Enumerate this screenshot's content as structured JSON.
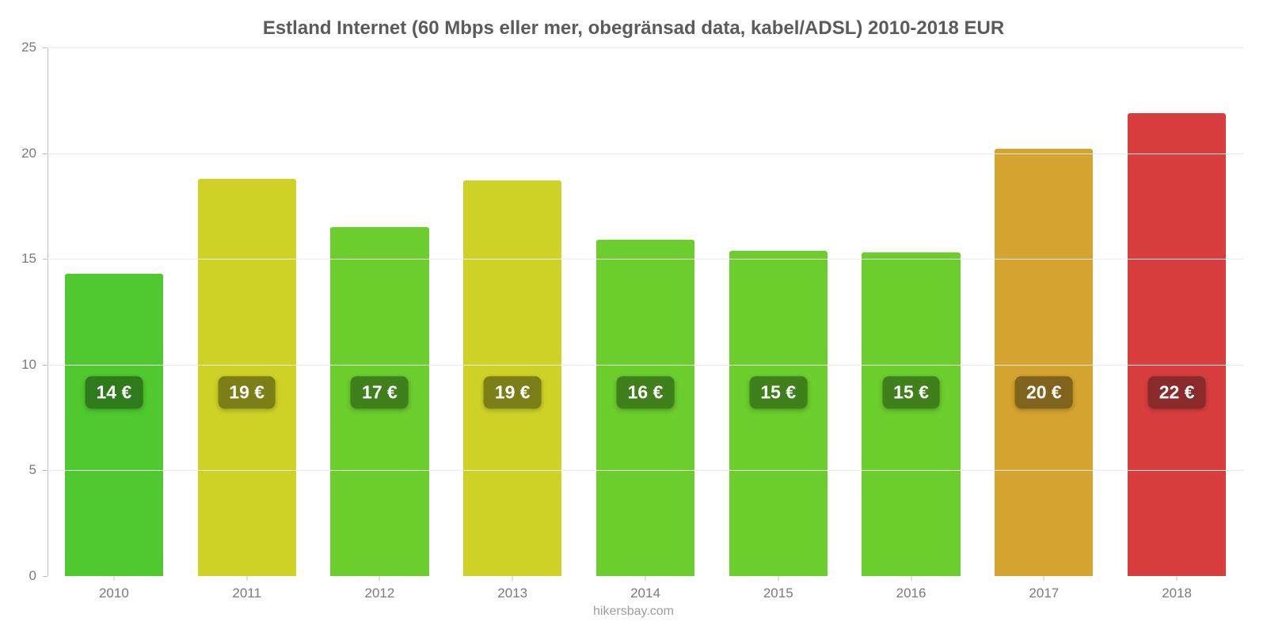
{
  "chart": {
    "type": "bar",
    "title": "Estland Internet (60 Mbps eller mer, obegränsad data, kabel/ADSL) 2010-2018 EUR",
    "title_fontsize": 24,
    "title_color": "#5b5b5b",
    "credit": "hikersbay.com",
    "credit_color": "#9e9e9e",
    "credit_fontsize": 16,
    "background_color": "#ffffff",
    "grid_color": "#ececec",
    "axis_color": "#c0c0c0",
    "tick_label_color": "#7a7a7a",
    "tick_label_fontsize": 17,
    "ylim": [
      0,
      25
    ],
    "ytick_step": 5,
    "bar_width": 0.74,
    "bar_label_fontsize": 23,
    "categories": [
      "2010",
      "2011",
      "2012",
      "2013",
      "2014",
      "2015",
      "2016",
      "2017",
      "2018"
    ],
    "values": [
      14.3,
      18.8,
      16.5,
      18.7,
      15.9,
      15.4,
      15.3,
      20.2,
      21.9
    ],
    "value_labels": [
      "14 €",
      "19 €",
      "17 €",
      "19 €",
      "16 €",
      "15 €",
      "15 €",
      "20 €",
      "22 €"
    ],
    "bar_colors": [
      "#4fc92f",
      "#ced227",
      "#6bce2c",
      "#ced227",
      "#6bce2c",
      "#6bce2c",
      "#6bce2c",
      "#d5a430",
      "#d93e3e"
    ],
    "label_bg_colors": [
      "#2f7a1c",
      "#7c7f17",
      "#40801c",
      "#7c7f17",
      "#40801c",
      "#40801c",
      "#40801c",
      "#80641d",
      "#8a2a2a"
    ],
    "label_center_value": 8.7
  }
}
